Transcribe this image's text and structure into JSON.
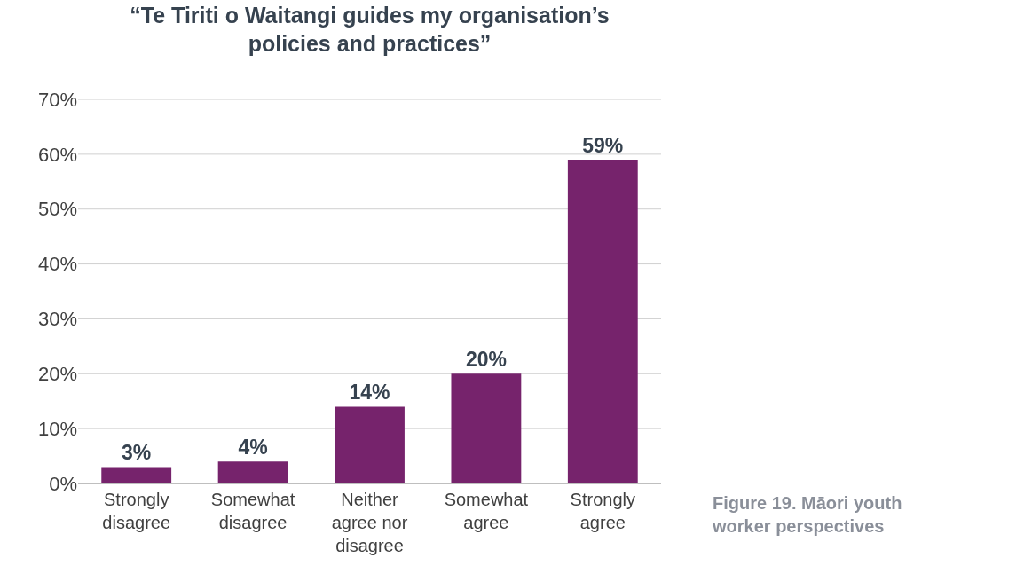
{
  "chart_data": {
    "type": "bar",
    "title": "“Te Tiriti o Waitangi guides my organisation’s policies and practices”",
    "categories": [
      "Strongly disagree",
      "Somewhat disagree",
      "Neither agree nor disagree",
      "Somewhat agree",
      "Strongly agree"
    ],
    "values": [
      3,
      4,
      14,
      20,
      59
    ],
    "value_labels": [
      "3%",
      "4%",
      "14%",
      "20%",
      "59%"
    ],
    "color": "#76236c",
    "ylim": [
      0,
      70
    ],
    "yticks": [
      {
        "value": 0,
        "label": "0%"
      },
      {
        "value": 10,
        "label": "10%"
      },
      {
        "value": 20,
        "label": "20%"
      },
      {
        "value": 30,
        "label": "30%"
      },
      {
        "value": 40,
        "label": "40%"
      },
      {
        "value": 50,
        "label": "50%"
      },
      {
        "value": 60,
        "label": "60%"
      },
      {
        "value": 70,
        "label": "70%"
      }
    ],
    "grid": "y",
    "annotations": [
      "Figure 19. Māori youth worker perspectives"
    ]
  }
}
